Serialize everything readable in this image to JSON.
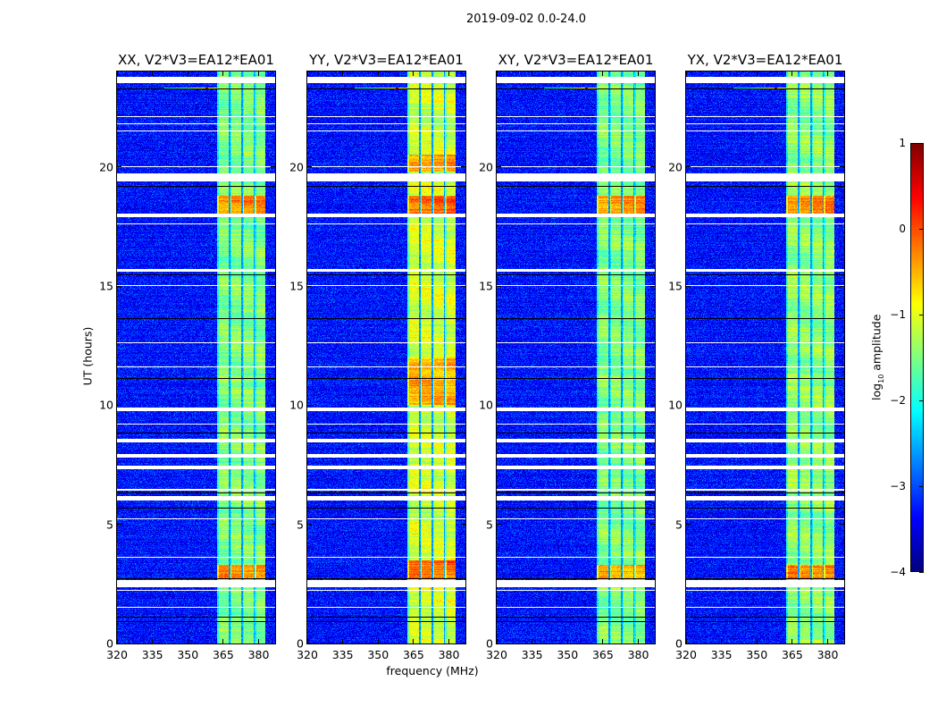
{
  "chart_data": {
    "type": "heatmap",
    "title": "2019-09-02 0.0-24.0",
    "xlabel": "frequency (MHz)",
    "ylabel": "UT (hours)",
    "xlim": [
      320,
      387
    ],
    "ylim": [
      0,
      24
    ],
    "xticks": [
      "320",
      "335",
      "350",
      "365",
      "380"
    ],
    "xtick_values": [
      320,
      335,
      350,
      365,
      380
    ],
    "yticks": [
      "0",
      "5",
      "10",
      "15",
      "20"
    ],
    "ytick_values": [
      0,
      5,
      10,
      15,
      20
    ],
    "colorbar": {
      "label_main": "log",
      "label_sub": "10",
      "label_rest": " amplitude",
      "colormap": "jet",
      "range": [
        -4,
        1
      ],
      "ticks": [
        "1",
        "0",
        "−1",
        "−2",
        "−3",
        "−4"
      ],
      "tick_values": [
        1,
        0,
        -1,
        -2,
        -3,
        -4
      ]
    },
    "background_log_amp": -3.3,
    "subbands_mhz": [
      [
        362.5,
        367.4
      ],
      [
        368.0,
        372.6
      ],
      [
        373.3,
        377.9
      ],
      [
        378.4,
        383.0
      ]
    ],
    "flagged_hours": [
      [
        23.5,
        23.76
      ],
      [
        19.4,
        19.72
      ],
      [
        17.9,
        18.05
      ],
      [
        15.6,
        15.72
      ],
      [
        9.75,
        9.9
      ],
      [
        8.45,
        8.6
      ],
      [
        7.8,
        7.95
      ],
      [
        7.32,
        7.45
      ],
      [
        6.4,
        6.5
      ],
      [
        6.0,
        6.18
      ],
      [
        2.35,
        2.68
      ],
      [
        22.1,
        22.14
      ],
      [
        21.8,
        21.84
      ],
      [
        21.5,
        21.54
      ],
      [
        20.0,
        20.04
      ],
      [
        17.6,
        17.64
      ],
      [
        15.0,
        15.03
      ],
      [
        14.2,
        14.23
      ],
      [
        12.6,
        12.63
      ],
      [
        11.6,
        11.63
      ],
      [
        10.3,
        10.33
      ],
      [
        9.2,
        9.23
      ],
      [
        5.2,
        5.24
      ],
      [
        3.6,
        3.63
      ],
      [
        2.2,
        2.24
      ],
      [
        1.5,
        1.54
      ],
      [
        0.4,
        0.43
      ]
    ],
    "dropout_hours": [
      [
        23.25,
        23.3
      ],
      [
        19.15,
        19.2
      ],
      [
        15.45,
        15.5
      ],
      [
        13.6,
        13.64
      ],
      [
        11.1,
        11.14
      ],
      [
        8.8,
        8.84
      ],
      [
        6.3,
        6.33
      ],
      [
        5.65,
        5.7
      ],
      [
        2.7,
        2.74
      ],
      [
        1.1,
        1.13
      ],
      [
        0.9,
        0.93
      ]
    ],
    "rfi": {
      "hour": 23.3,
      "peak_mhz": 358,
      "peak_log_amp": 0.8
    },
    "panels": [
      {
        "title": "XX, V2*V3=EA12*EA01",
        "subband_log_amp": -1.5,
        "hot_hours": [
          [
            17.9,
            18.8,
            -0.3
          ],
          [
            2.7,
            3.3,
            -0.3
          ]
        ]
      },
      {
        "title": "YY, V2*V3=EA12*EA01",
        "subband_log_amp": -1.1,
        "hot_hours": [
          [
            17.9,
            18.8,
            -0.1
          ],
          [
            2.7,
            3.5,
            -0.1
          ],
          [
            10.0,
            12.0,
            -0.5
          ],
          [
            19.8,
            20.5,
            -0.4
          ]
        ]
      },
      {
        "title": "XY, V2*V3=EA12*EA01",
        "subband_log_amp": -1.5,
        "hot_hours": [
          [
            17.9,
            18.8,
            -0.4
          ],
          [
            2.7,
            3.3,
            -0.4
          ]
        ]
      },
      {
        "title": "YX, V2*V3=EA12*EA01",
        "subband_log_amp": -1.4,
        "hot_hours": [
          [
            17.9,
            18.8,
            -0.3
          ],
          [
            2.7,
            3.3,
            -0.2
          ]
        ]
      }
    ]
  }
}
